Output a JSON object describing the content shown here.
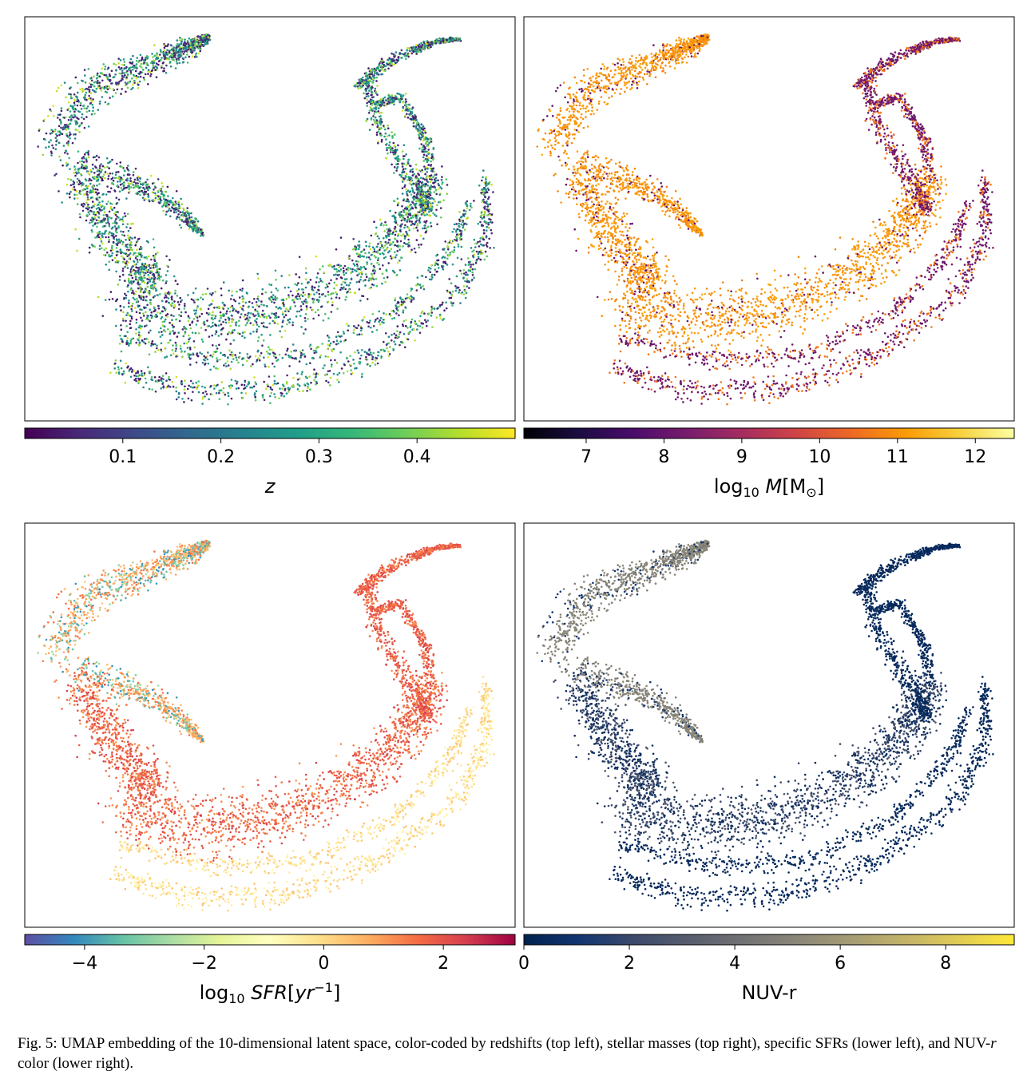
{
  "chart_data": [
    {
      "type": "scatter",
      "panel": "top left",
      "colorbar": {
        "label_parts": [
          {
            "text": "z",
            "italic": true
          }
        ],
        "colormap": "viridis",
        "range": [
          0.0,
          0.5
        ],
        "ticks": [
          0.1,
          0.2,
          0.3,
          0.4
        ],
        "tick_labels": [
          "0.1",
          "0.2",
          "0.3",
          "0.4"
        ]
      },
      "axes": {
        "xticks": "none",
        "yticks": "none",
        "grid": false
      },
      "color_description": "mixed purple, teal and yellow-green throughout"
    },
    {
      "type": "scatter",
      "panel": "top right",
      "colorbar": {
        "label_parts": [
          {
            "text": "log"
          },
          {
            "text": "10",
            "sub": true
          },
          {
            "text": " "
          },
          {
            "text": "M",
            "italic": true
          },
          {
            "text": "[M"
          },
          {
            "text": "⊙",
            "sub": true
          },
          {
            "text": "]"
          }
        ],
        "colormap": "inferno",
        "range": [
          6.2,
          12.5
        ],
        "ticks": [
          7,
          8,
          9,
          10,
          11,
          12
        ],
        "tick_labels": [
          "7",
          "8",
          "9",
          "10",
          "11",
          "12"
        ]
      },
      "axes": {
        "xticks": "none",
        "yticks": "none",
        "grid": false
      },
      "color_description": "orange (~10.5-11) in main body, dark purple (~8) along outer arcs and right strands"
    },
    {
      "type": "scatter",
      "panel": "lower left",
      "colorbar": {
        "label_parts": [
          {
            "text": "log"
          },
          {
            "text": "10",
            "sub": true
          },
          {
            "text": " "
          },
          {
            "text": "SFR",
            "italic": true
          },
          {
            "text": "["
          },
          {
            "text": "yr",
            "italic": true
          },
          {
            "text": "−1",
            "sup": true
          },
          {
            "text": "]"
          }
        ],
        "colormap": "Spectral_r",
        "range": [
          -5.0,
          3.2
        ],
        "ticks": [
          -4,
          -2,
          0,
          2
        ],
        "tick_labels": [
          "−4",
          "−2",
          "0",
          "2"
        ]
      },
      "axes": {
        "xticks": "none",
        "yticks": "none",
        "grid": false
      },
      "color_description": "orange-red (~1-2) in main body, pale yellow (~0) on outer arcs, blue-green (-2 to -4) speckles in upper-left lobe"
    },
    {
      "type": "scatter",
      "panel": "lower right",
      "colorbar": {
        "label_parts": [
          {
            "text": "NUV-r"
          }
        ],
        "colormap": "cividis",
        "range": [
          0.0,
          9.3
        ],
        "ticks": [
          0,
          2,
          4,
          6,
          8
        ],
        "tick_labels": [
          "0",
          "2",
          "4",
          "6",
          "8"
        ]
      },
      "axes": {
        "xticks": "none",
        "yticks": "none",
        "grid": false
      },
      "color_description": "grey-tan (~5) in upper-left lobe, navy (~1) in arc and right strands"
    }
  ],
  "caption": "Fig. 5: UMAP embedding of the 10-dimensional latent space, color-coded by redshifts (top left), stellar masses (top right), specific SFRs (lower left), and NUV-r color (lower right).",
  "caption_parts": [
    {
      "text": "Fig. 5: UMAP embedding of the 10-dimensional latent space, color-coded by redshifts (top left), stellar masses (top right), specific SFRs (lower left), and NUV-"
    },
    {
      "text": "r",
      "italic": true
    },
    {
      "text": " color (lower right)."
    }
  ]
}
